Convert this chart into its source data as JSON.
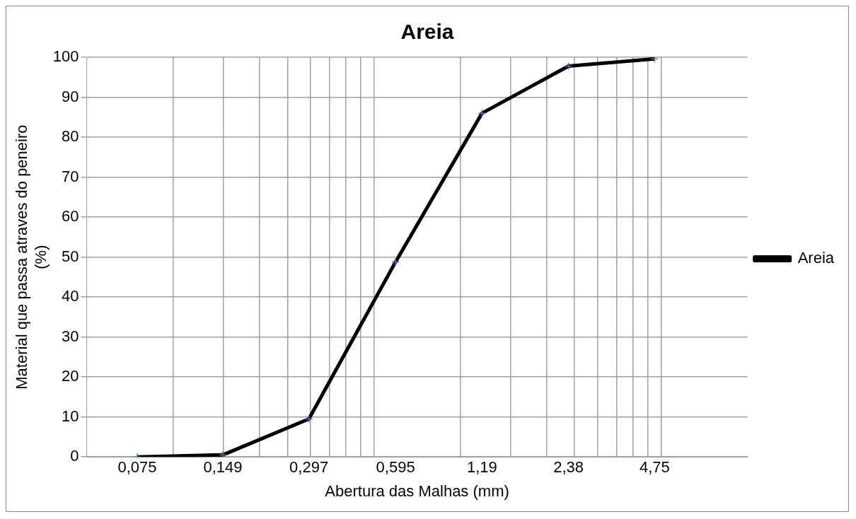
{
  "chart_data": {
    "type": "line",
    "title": "Areia",
    "xlabel": "Abertura das Malhas (mm)",
    "ylabel": "Material que passa atraves do peneiro (%)",
    "x": [
      0.075,
      0.149,
      0.297,
      0.595,
      1.19,
      2.38,
      4.75
    ],
    "series": [
      {
        "name": "Areia",
        "color": "#000000",
        "values": [
          0,
          0.5,
          9.5,
          48.8,
          86,
          97.8,
          99.6
        ]
      }
    ],
    "log": "x",
    "xlim": [
      0.05,
      10
    ],
    "xticks": [
      {
        "value": 0.075,
        "label": "0,075"
      },
      {
        "value": 0.149,
        "label": "0,149"
      },
      {
        "value": 0.297,
        "label": "0,297"
      },
      {
        "value": 0.595,
        "label": "0,595"
      },
      {
        "value": 1.19,
        "label": "1,19"
      },
      {
        "value": 2.38,
        "label": "2,38"
      },
      {
        "value": 4.75,
        "label": "4,75"
      },
      {
        "value": 0.1,
        "label": null
      },
      {
        "value": 0.15,
        "label": null
      },
      {
        "value": 0.2,
        "label": null
      },
      {
        "value": 0.25,
        "label": null
      },
      {
        "value": 0.3,
        "label": null
      },
      {
        "value": 0.35,
        "label": null
      },
      {
        "value": 0.4,
        "label": null
      },
      {
        "value": 0.45,
        "label": null
      },
      {
        "value": 0.5,
        "label": null
      },
      {
        "value": 1,
        "label": null
      },
      {
        "value": 1.5,
        "label": null
      },
      {
        "value": 2,
        "label": null
      },
      {
        "value": 2.5,
        "label": null
      },
      {
        "value": 3,
        "label": null
      },
      {
        "value": 3.5,
        "label": null
      },
      {
        "value": 4,
        "label": null
      },
      {
        "value": 4.5,
        "label": null
      },
      {
        "value": 5,
        "label": null
      }
    ],
    "ylim": [
      0,
      100
    ],
    "yticks": [
      0,
      10,
      20,
      30,
      40,
      50,
      60,
      70,
      80,
      90,
      100
    ],
    "grid": true,
    "legend": "right",
    "marker": "cross",
    "line_style": "solid"
  }
}
